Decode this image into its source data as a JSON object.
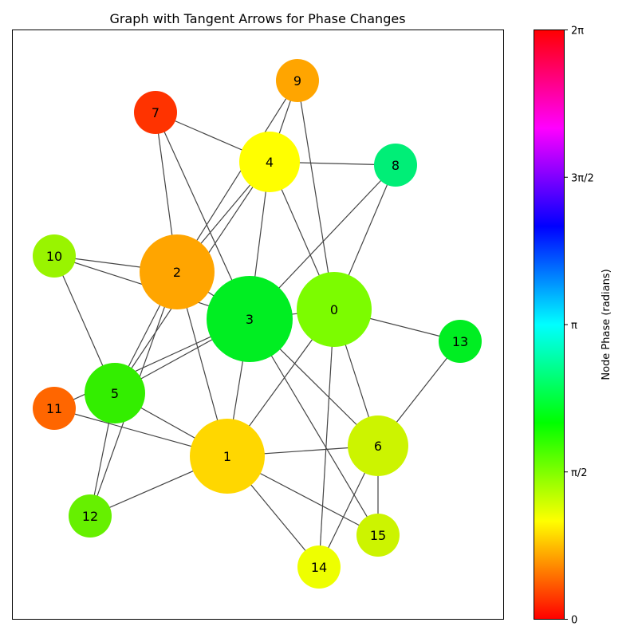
{
  "title": "Graph with Tangent Arrows for Phase Changes",
  "colorbar": {
    "label": "Node Phase (radians)",
    "ticks": [
      "0",
      "π/2",
      "π",
      "3π/2",
      "2π"
    ],
    "tick_values": [
      0,
      1.5708,
      3.1416,
      4.7124,
      6.2832
    ],
    "range": [
      0,
      6.2832
    ]
  },
  "nodes": [
    {
      "id": "0",
      "label": "0",
      "color": "#7cfc00",
      "phase": 1.93
    },
    {
      "id": "1",
      "label": "1",
      "color": "#ffd700",
      "phase": 0.98
    },
    {
      "id": "2",
      "label": "2",
      "color": "#ffa500",
      "phase": 0.68
    },
    {
      "id": "3",
      "label": "3",
      "color": "#00ee22",
      "phase": 2.3
    },
    {
      "id": "4",
      "label": "4",
      "color": "#ffff00",
      "phase": 1.05
    },
    {
      "id": "5",
      "label": "5",
      "color": "#33ee00",
      "phase": 2.1
    },
    {
      "id": "6",
      "label": "6",
      "color": "#ccf400",
      "phase": 1.4
    },
    {
      "id": "7",
      "label": "7",
      "color": "#ff3300",
      "phase": 0.2
    },
    {
      "id": "8",
      "label": "8",
      "color": "#00ee77",
      "phase": 2.7
    },
    {
      "id": "9",
      "label": "9",
      "color": "#ffa500",
      "phase": 0.68
    },
    {
      "id": "10",
      "label": "10",
      "color": "#99f400",
      "phase": 1.75
    },
    {
      "id": "11",
      "label": "11",
      "color": "#ff6600",
      "phase": 0.4
    },
    {
      "id": "12",
      "label": "12",
      "color": "#66f000",
      "phase": 1.98
    },
    {
      "id": "13",
      "label": "13",
      "color": "#00ee22",
      "phase": 2.35
    },
    {
      "id": "14",
      "label": "14",
      "color": "#eeff00",
      "phase": 1.2
    },
    {
      "id": "15",
      "label": "15",
      "color": "#ccf400",
      "phase": 1.4
    }
  ],
  "edges": [
    [
      "0",
      "9"
    ],
    [
      "0",
      "4"
    ],
    [
      "0",
      "8"
    ],
    [
      "0",
      "3"
    ],
    [
      "0",
      "13"
    ],
    [
      "0",
      "6"
    ],
    [
      "0",
      "14"
    ],
    [
      "0",
      "1"
    ],
    [
      "1",
      "3"
    ],
    [
      "1",
      "2"
    ],
    [
      "1",
      "6"
    ],
    [
      "1",
      "5"
    ],
    [
      "1",
      "11"
    ],
    [
      "1",
      "12"
    ],
    [
      "1",
      "14"
    ],
    [
      "1",
      "15"
    ],
    [
      "2",
      "7"
    ],
    [
      "2",
      "4"
    ],
    [
      "2",
      "10"
    ],
    [
      "2",
      "3"
    ],
    [
      "2",
      "5"
    ],
    [
      "2",
      "12"
    ],
    [
      "3",
      "7"
    ],
    [
      "3",
      "4"
    ],
    [
      "3",
      "8"
    ],
    [
      "3",
      "10"
    ],
    [
      "3",
      "5"
    ],
    [
      "3",
      "11"
    ],
    [
      "3",
      "6"
    ],
    [
      "3",
      "15"
    ],
    [
      "4",
      "9"
    ],
    [
      "4",
      "7"
    ],
    [
      "4",
      "8"
    ],
    [
      "4",
      "5"
    ],
    [
      "5",
      "10"
    ],
    [
      "5",
      "12"
    ],
    [
      "6",
      "13"
    ],
    [
      "6",
      "15"
    ],
    [
      "6",
      "14"
    ],
    [
      "9",
      "2"
    ]
  ]
}
